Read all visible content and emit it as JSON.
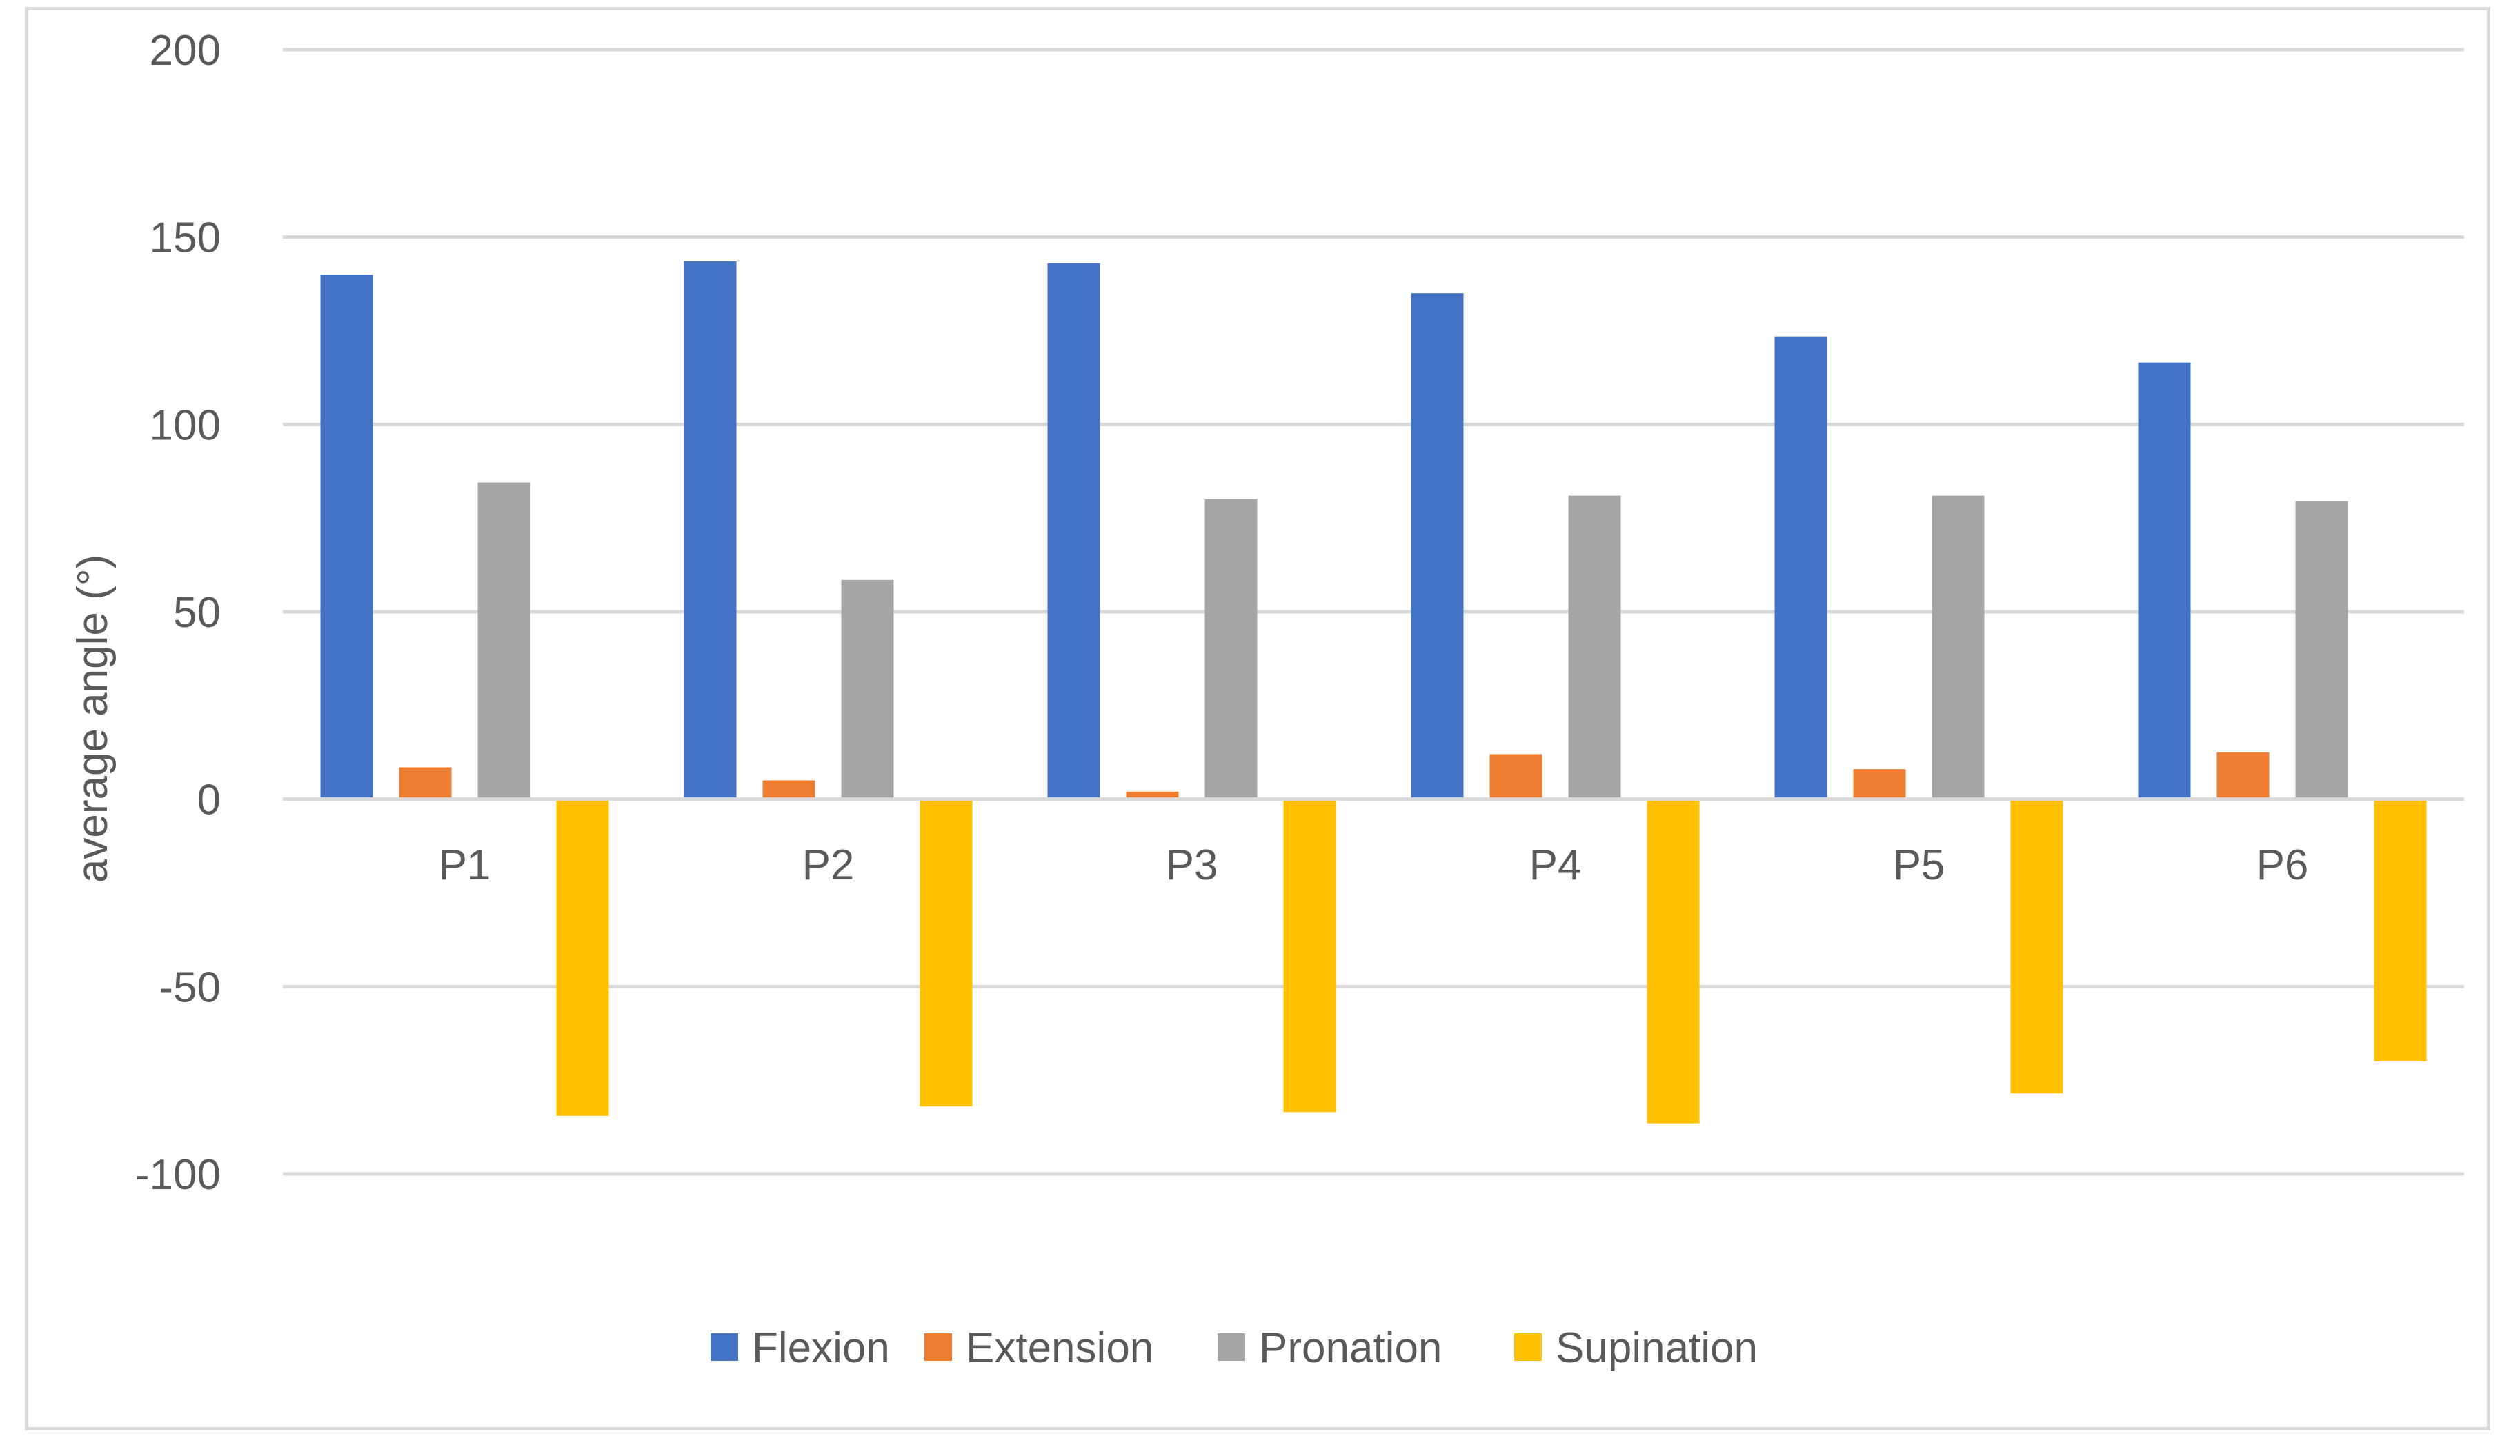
{
  "chart_data": {
    "type": "bar",
    "title": "",
    "xlabel": "",
    "ylabel": "average angle (°)",
    "ylim": [
      -100,
      200
    ],
    "yticks": [
      200,
      150,
      100,
      50,
      0,
      -50,
      -100
    ],
    "ytick_labels": [
      "200",
      "150",
      "100",
      "50",
      "0",
      "-50",
      "-100"
    ],
    "grid": true,
    "legend_position": "bottom",
    "categories": [
      "P1",
      "P2",
      "P3",
      "P4",
      "P5",
      "P6"
    ],
    "series": [
      {
        "name": "Flexion",
        "color": "#4472c4",
        "values": [
          140,
          143.5,
          143,
          135,
          123.5,
          116.5
        ]
      },
      {
        "name": "Extension",
        "color": "#ed7d31",
        "values": [
          8.5,
          5,
          2,
          12,
          8,
          12.5
        ]
      },
      {
        "name": "Pronation",
        "color": "#a5a5a5",
        "values": [
          84.5,
          58.5,
          80,
          81,
          81,
          79.5
        ]
      },
      {
        "name": "Supination",
        "color": "#ffc000",
        "values": [
          -84.5,
          -82,
          -83.5,
          -86.5,
          -78.5,
          -70
        ]
      }
    ],
    "gridline_color": "#d9d9d9",
    "text_color": "#595959"
  }
}
